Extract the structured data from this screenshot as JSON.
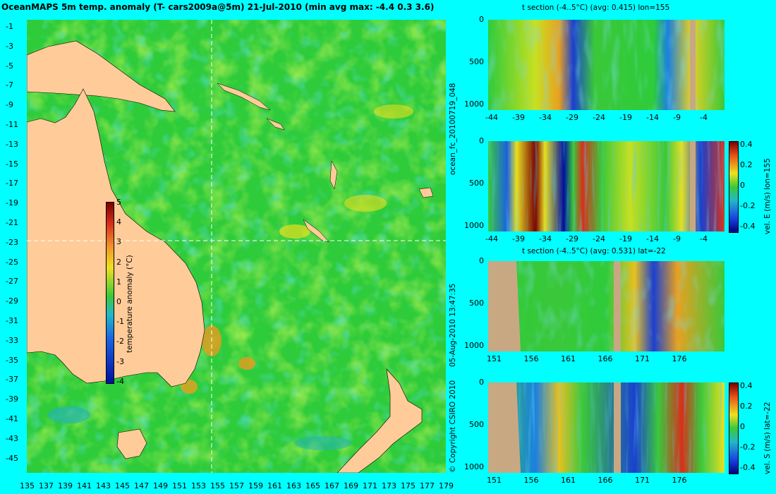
{
  "map": {
    "title": "OceanMAPS 5m temp. anomaly (T- cars2009a@5m) 21-Jul-2010 (min avg max: -4.4 0.3 3.6)",
    "lat_ticks": [
      "-1",
      "-3",
      "-5",
      "-7",
      "-9",
      "-11",
      "-13",
      "-15",
      "-17",
      "-19",
      "-21",
      "-23",
      "-25",
      "-27",
      "-29",
      "-31",
      "-33",
      "-35",
      "-37",
      "-39",
      "-41",
      "-43",
      "-45"
    ],
    "lon_ticks": [
      "135",
      "137",
      "139",
      "141",
      "143",
      "145",
      "147",
      "149",
      "151",
      "153",
      "155",
      "157",
      "159",
      "161",
      "163",
      "165",
      "167",
      "169",
      "171",
      "173",
      "175",
      "177",
      "179"
    ],
    "colorbar": {
      "ticks": [
        "5",
        "4",
        "3",
        "2",
        "1",
        "0",
        "-1",
        "-2",
        "-3",
        "-4"
      ],
      "label": "temperature anomaly (°C)"
    },
    "crosshair": {
      "lon": 155,
      "lat": -22
    }
  },
  "panels": [
    {
      "id": "p1",
      "title": "t section (-4..5°C) (avg: 0.415) lon=155",
      "y_ticks": [
        "0",
        "500",
        "1000"
      ],
      "x_ticks": [
        "-44",
        "-39",
        "-34",
        "-29",
        "-24",
        "-19",
        "-14",
        "-9",
        "-4"
      ],
      "colorbar": null,
      "cb_label": ""
    },
    {
      "id": "p2",
      "title": "",
      "y_ticks": [
        "0",
        "500",
        "1000"
      ],
      "x_ticks": [
        "-44",
        "-39",
        "-34",
        "-29",
        "-24",
        "-19",
        "-14",
        "-9",
        "-4"
      ],
      "colorbar": [
        "0.4",
        "0.2",
        "0",
        "-0.2",
        "-0.4"
      ],
      "cb_label": "vel. E (m/s) lon=155"
    },
    {
      "id": "p3",
      "title": "t section (-4..5°C) (avg: 0.531) lat=-22",
      "y_ticks": [
        "0",
        "500",
        "1000"
      ],
      "x_ticks": [
        "151",
        "156",
        "161",
        "166",
        "171",
        "176"
      ],
      "colorbar": null,
      "cb_label": ""
    },
    {
      "id": "p4",
      "title": "",
      "y_ticks": [
        "0",
        "500",
        "1000"
      ],
      "x_ticks": [
        "151",
        "156",
        "161",
        "166",
        "171",
        "176"
      ],
      "colorbar": [
        "0.4",
        "0.2",
        "0",
        "-0.2",
        "-0.4"
      ],
      "cb_label": "vel. S (m/s) lat=-22"
    }
  ],
  "side_labels": {
    "forecast_id": "ocean_fc_20100719_048",
    "timestamp": "05-Aug-2010 13:47:35",
    "copyright": "© Copyright CSIRO 2010"
  }
}
